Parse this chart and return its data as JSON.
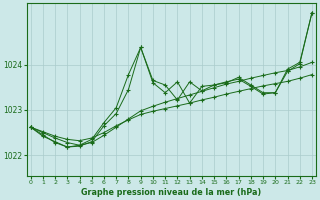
{
  "xlabel": "Graphe pression niveau de la mer (hPa)",
  "background_color": "#cce8e8",
  "grid_color": "#aacccc",
  "line_color": "#1a6b1a",
  "x_ticks": [
    0,
    1,
    2,
    3,
    4,
    5,
    6,
    7,
    8,
    9,
    10,
    11,
    12,
    13,
    14,
    15,
    16,
    17,
    18,
    19,
    20,
    21,
    22,
    23
  ],
  "y_ticks": [
    1022,
    1023,
    1024
  ],
  "ylim": [
    1021.55,
    1025.35
  ],
  "xlim": [
    -0.3,
    23.3
  ],
  "series_trend1": [
    1022.62,
    1022.52,
    1022.42,
    1022.35,
    1022.32,
    1022.38,
    1022.5,
    1022.65,
    1022.78,
    1022.9,
    1022.97,
    1023.03,
    1023.09,
    1023.15,
    1023.22,
    1023.28,
    1023.35,
    1023.41,
    1023.47,
    1023.53,
    1023.58,
    1023.63,
    1023.7,
    1023.78
  ],
  "series_trend2": [
    1022.62,
    1022.5,
    1022.38,
    1022.28,
    1022.22,
    1022.28,
    1022.44,
    1022.62,
    1022.8,
    1022.98,
    1023.08,
    1023.17,
    1023.25,
    1023.33,
    1023.41,
    1023.49,
    1023.57,
    1023.63,
    1023.7,
    1023.76,
    1023.82,
    1023.87,
    1023.95,
    1024.05
  ],
  "series_jagged1": [
    1022.62,
    1022.45,
    1022.28,
    1022.18,
    1022.22,
    1022.35,
    1022.72,
    1023.05,
    1023.78,
    1024.38,
    1023.65,
    1023.55,
    1023.22,
    1023.62,
    1023.42,
    1023.55,
    1023.6,
    1023.72,
    1023.55,
    1023.38,
    1023.38,
    1023.9,
    1024.05,
    1025.15
  ],
  "series_jagged2": [
    1022.62,
    1022.42,
    1022.3,
    1022.18,
    1022.2,
    1022.3,
    1022.65,
    1022.92,
    1023.45,
    1024.38,
    1023.6,
    1023.38,
    1023.62,
    1023.15,
    1023.52,
    1023.55,
    1023.62,
    1023.68,
    1023.52,
    1023.35,
    1023.38,
    1023.85,
    1024.02,
    1025.15
  ]
}
